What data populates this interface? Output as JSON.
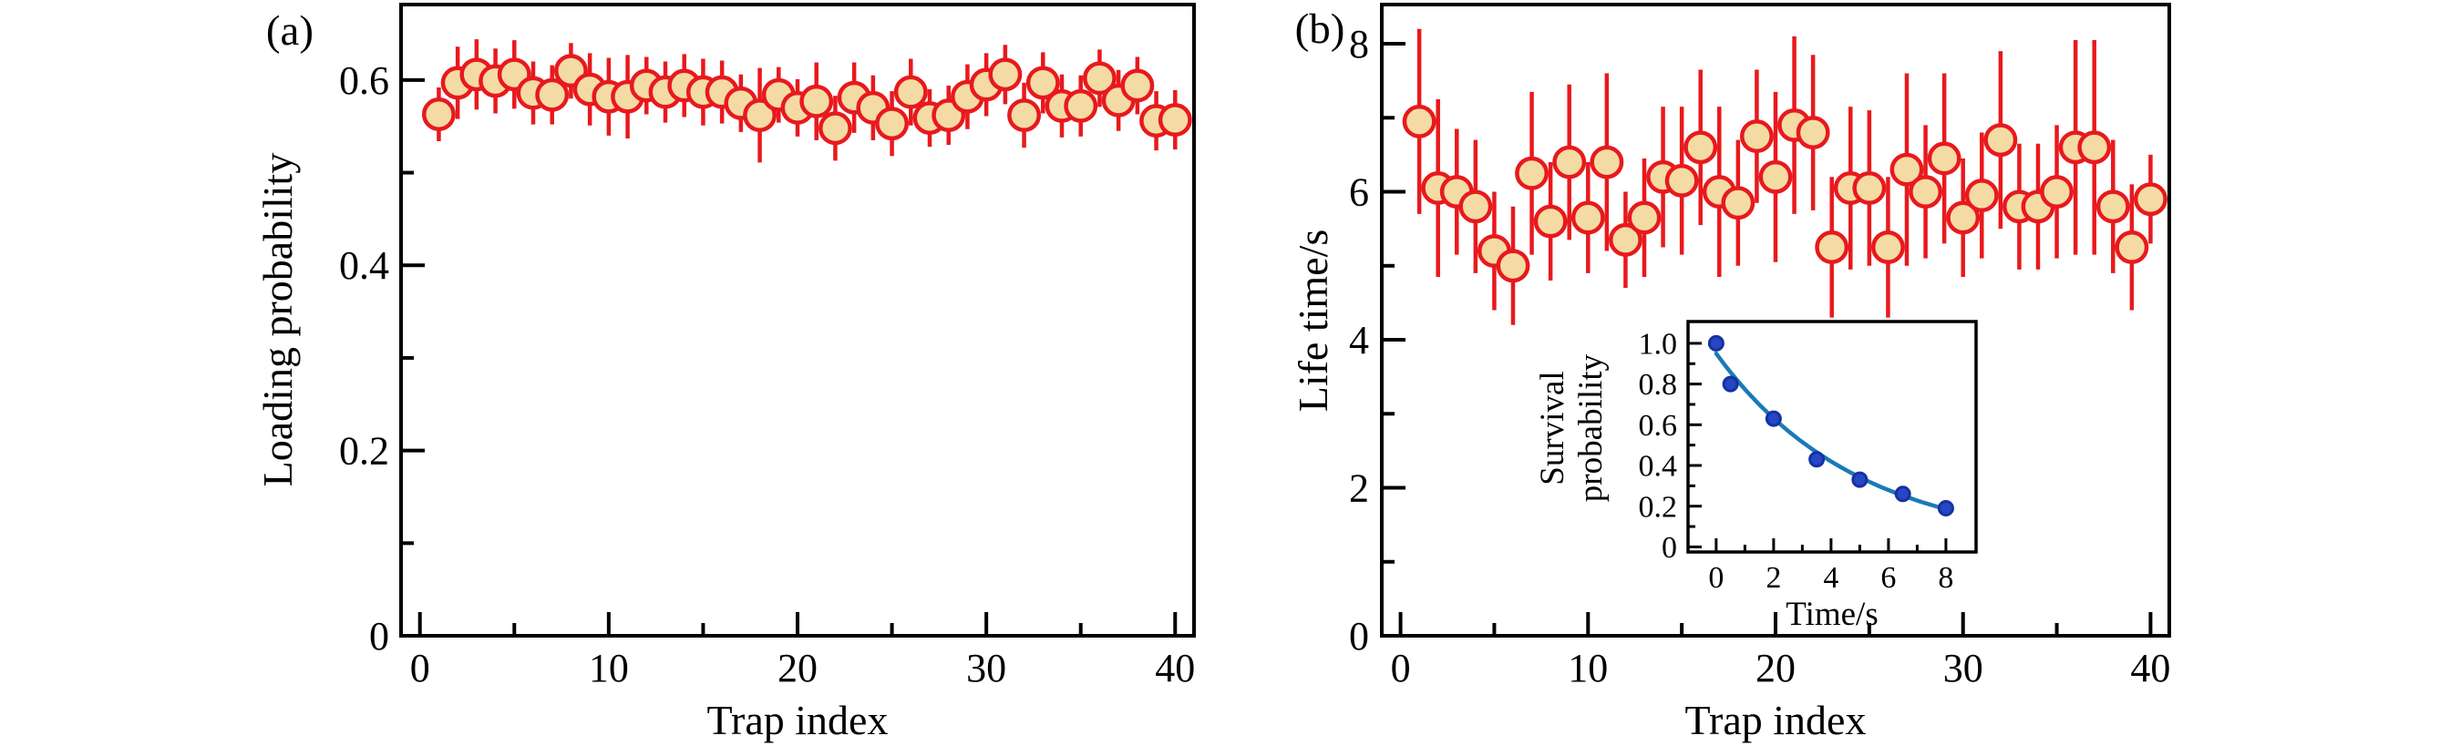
{
  "figure": {
    "background": "#ffffff",
    "description": "Two-panel errorbar scatter figure with inset decay curve"
  },
  "style": {
    "marker_edge": "#e8191d",
    "marker_face": "#f4dba4",
    "error_bar": "#e8191d",
    "axis_color": "#000000",
    "text_color": "#000000",
    "inset_dot_face": "#2547c5",
    "inset_dot_edge": "#16309e",
    "inset_curve": "#1a7ab8",
    "background": "#ffffff"
  },
  "chart_data": [
    {
      "id": "a",
      "type": "scatter",
      "panel_label": "(a)",
      "xlabel": "Trap index",
      "ylabel": "Loading probability",
      "xlim": [
        -1.0,
        41.0
      ],
      "ylim": [
        0,
        0.6815
      ],
      "grid": false,
      "xticks": {
        "major": [
          0,
          10,
          20,
          30,
          40
        ],
        "labels": [
          "0",
          "10",
          "20",
          "30",
          "40"
        ],
        "minor": [
          5,
          15,
          25,
          35
        ]
      },
      "yticks": {
        "major": [
          0,
          0.2,
          0.4,
          0.6
        ],
        "labels": [
          "0",
          "0.2",
          "0.4",
          "0.6"
        ],
        "minor": [
          0.1,
          0.3,
          0.5
        ]
      },
      "series": {
        "name": "loading-probability-vs-trap",
        "x": [
          1,
          2,
          3,
          4,
          5,
          6,
          7,
          8,
          9,
          10,
          11,
          12,
          13,
          14,
          15,
          16,
          17,
          18,
          19,
          20,
          21,
          22,
          23,
          24,
          25,
          26,
          27,
          28,
          29,
          30,
          31,
          32,
          33,
          34,
          35,
          36,
          37,
          38,
          39,
          40
        ],
        "y": [
          0.563,
          0.597,
          0.606,
          0.599,
          0.606,
          0.586,
          0.584,
          0.61,
          0.59,
          0.582,
          0.582,
          0.594,
          0.587,
          0.594,
          0.587,
          0.587,
          0.575,
          0.562,
          0.584,
          0.57,
          0.577,
          0.548,
          0.581,
          0.57,
          0.553,
          0.587,
          0.559,
          0.562,
          0.582,
          0.595,
          0.606,
          0.562,
          0.597,
          0.572,
          0.572,
          0.602,
          0.578,
          0.594,
          0.556,
          0.557
        ],
        "yerr": [
          0.029,
          0.039,
          0.038,
          0.035,
          0.037,
          0.034,
          0.032,
          0.03,
          0.039,
          0.042,
          0.045,
          0.031,
          0.033,
          0.034,
          0.036,
          0.034,
          0.031,
          0.051,
          0.03,
          0.031,
          0.042,
          0.035,
          0.038,
          0.035,
          0.035,
          0.036,
          0.031,
          0.032,
          0.035,
          0.034,
          0.032,
          0.035,
          0.033,
          0.034,
          0.033,
          0.031,
          0.033,
          0.031,
          0.032,
          0.032
        ]
      }
    },
    {
      "id": "b",
      "type": "scatter",
      "panel_label": "(b)",
      "xlabel": "Trap index",
      "ylabel": "Life time/s",
      "xlim": [
        -1.0,
        41.0
      ],
      "ylim": [
        0,
        8.53
      ],
      "grid": false,
      "xticks": {
        "major": [
          0,
          10,
          20,
          30,
          40
        ],
        "labels": [
          "0",
          "10",
          "20",
          "30",
          "40"
        ],
        "minor": [
          5,
          15,
          25,
          35
        ]
      },
      "yticks": {
        "major": [
          0,
          2,
          4,
          6,
          8
        ],
        "labels": [
          "0",
          "2",
          "4",
          "6",
          "8"
        ],
        "minor": [
          1,
          3,
          5,
          7
        ]
      },
      "series": {
        "name": "life-time-vs-trap",
        "x": [
          1,
          2,
          3,
          4,
          5,
          6,
          7,
          8,
          9,
          10,
          11,
          12,
          13,
          14,
          15,
          16,
          17,
          18,
          19,
          20,
          21,
          22,
          23,
          24,
          25,
          26,
          27,
          28,
          29,
          30,
          31,
          32,
          33,
          34,
          35,
          36,
          37,
          38,
          39,
          40
        ],
        "y": [
          6.95,
          6.05,
          6.0,
          5.8,
          5.2,
          5.0,
          6.25,
          5.6,
          6.4,
          5.65,
          6.4,
          5.35,
          5.65,
          6.2,
          6.15,
          6.6,
          6.0,
          5.85,
          6.75,
          6.2,
          6.9,
          6.8,
          5.25,
          6.05,
          6.05,
          5.25,
          6.3,
          6.0,
          6.45,
          5.65,
          5.95,
          6.7,
          5.8,
          5.8,
          6.0,
          6.6,
          6.6,
          5.8,
          5.25,
          5.9
        ],
        "yerr": [
          1.25,
          1.2,
          0.85,
          0.9,
          0.8,
          0.8,
          1.1,
          0.8,
          1.05,
          0.75,
          1.2,
          0.65,
          0.8,
          0.95,
          1.0,
          1.05,
          1.15,
          0.85,
          0.9,
          1.15,
          1.2,
          1.05,
          0.95,
          1.1,
          1.05,
          0.95,
          1.3,
          0.9,
          1.15,
          0.8,
          0.85,
          1.2,
          0.85,
          0.85,
          0.9,
          1.45,
          1.45,
          0.9,
          0.85,
          0.6
        ]
      },
      "inset": {
        "type": "scatter-with-fit",
        "xlabel": "Time/s",
        "ylabel_lines": [
          "Survival",
          "probability"
        ],
        "xlim": [
          -0.98,
          9.05
        ],
        "ylim": [
          -0.025,
          1.107
        ],
        "xticks": {
          "major": [
            0,
            2,
            4,
            6,
            8
          ],
          "labels": [
            "0",
            "2",
            "4",
            "6",
            "8"
          ],
          "minor": [
            1,
            3,
            5,
            7
          ]
        },
        "yticks": {
          "major": [
            0,
            0.2,
            0.4,
            0.6,
            0.8,
            1.0
          ],
          "labels": [
            "0",
            "0.2",
            "0.4",
            "0.6",
            "0.8",
            "1.0"
          ],
          "minor": [
            0.1,
            0.3,
            0.5,
            0.7,
            0.9
          ]
        },
        "points": {
          "name": "survival-probability-vs-time",
          "x": [
            0,
            0.5,
            2,
            3.5,
            5,
            6.5,
            8
          ],
          "y": [
            1.0,
            0.8,
            0.63,
            0.43,
            0.33,
            0.26,
            0.19
          ]
        },
        "fit_curve": {
          "model": "A*exp(-t/tau)",
          "A": 0.95,
          "tau": 4.9,
          "t_min": 0,
          "t_max": 8.15
        }
      }
    }
  ]
}
